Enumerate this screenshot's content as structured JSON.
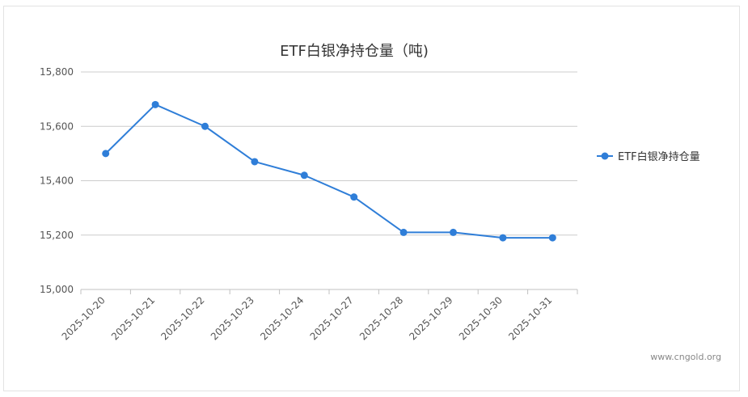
{
  "chart_data": {
    "type": "line",
    "title": "ETF白银净持仓量（吨)",
    "xlabel": "",
    "ylabel": "",
    "categories": [
      "2025-10-20",
      "2025-10-21",
      "2025-10-22",
      "2025-10-23",
      "2025-10-24",
      "2025-10-27",
      "2025-10-28",
      "2025-10-29",
      "2025-10-30",
      "2025-10-31"
    ],
    "series": [
      {
        "name": "ETF白银净持仓量",
        "values": [
          15500,
          15680,
          15600,
          15470,
          15420,
          15340,
          15210,
          15210,
          15190,
          15190
        ]
      }
    ],
    "ylim": [
      15000,
      15800
    ],
    "yticks": [
      "15,000",
      "15,200",
      "15,400",
      "15,600",
      "15,800"
    ],
    "grid": true,
    "legend_position": "right",
    "color": "#2f7ed8"
  },
  "credit": "www.cngold.org"
}
